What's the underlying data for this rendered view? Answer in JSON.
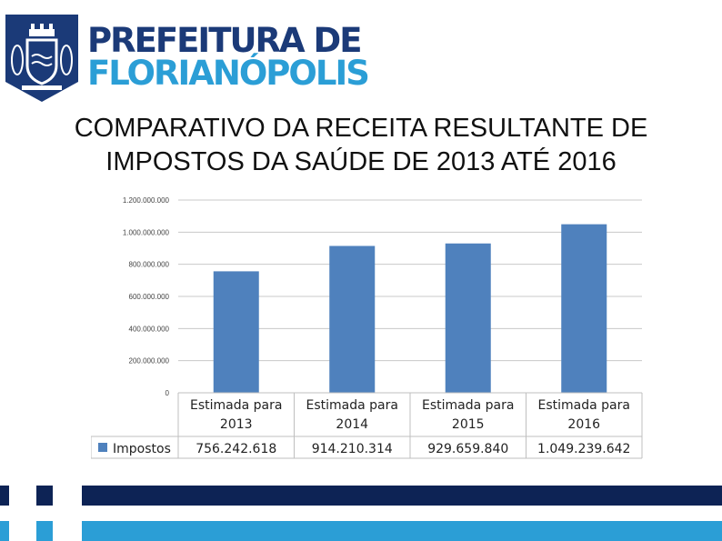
{
  "header": {
    "brand_line1": "PREFEITURA DE",
    "brand_line2": "FLORIANÓPOLIS",
    "logo_icon": "coat-of-arms-icon",
    "colors": {
      "navy": "#1b3a78",
      "cyan": "#2b9ed6"
    }
  },
  "slide": {
    "title_line1": "COMPARATIVO DA RECEITA RESULTANTE DE",
    "title_line2": "IMPOSTOS DA SAÚDE DE 2013 ATÉ 2016"
  },
  "chart_data": {
    "type": "bar",
    "categories": [
      "Estimada para 2013",
      "Estimada para 2014",
      "Estimada para 2015",
      "Estimada para 2016"
    ],
    "series": [
      {
        "name": "Impostos",
        "values": [
          756242618,
          914210314,
          929659840,
          1049239642
        ],
        "color": "#4f81bd"
      }
    ],
    "data_labels": [
      "756.242.618",
      "914.210.314",
      "929.659.840",
      "1.049.239.642"
    ],
    "y_ticks": [
      "0",
      "200.000.000",
      "400.000.000",
      "600.000.000",
      "800.000.000",
      "1.000.000.000",
      "1.200.000.000"
    ],
    "ylim": [
      0,
      1200000000
    ],
    "grid": true,
    "legend": "data-table"
  },
  "footer": {
    "colors": {
      "navy": "#0d2355",
      "cyan": "#2b9ed6"
    }
  }
}
